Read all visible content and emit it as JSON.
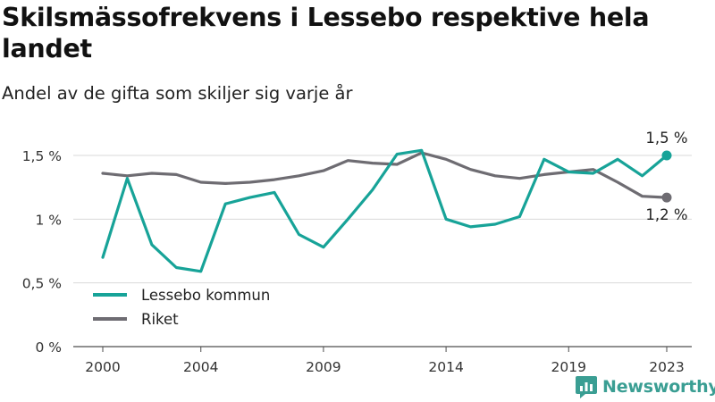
{
  "title": "Skilsmässofrekvens i Lessebo respektive hela landet",
  "subtitle": "Andel av de gifta som skiljer sig varje år",
  "brand": "Newsworthy",
  "chart_data": {
    "type": "line",
    "x": [
      2000,
      2001,
      2002,
      2003,
      2004,
      2005,
      2006,
      2007,
      2008,
      2009,
      2010,
      2011,
      2012,
      2013,
      2014,
      2015,
      2016,
      2017,
      2018,
      2019,
      2020,
      2021,
      2022,
      2023
    ],
    "xticks": [
      2000,
      2004,
      2009,
      2014,
      2019,
      2023
    ],
    "yticks": [
      0,
      0.5,
      1,
      1.5
    ],
    "ytick_labels": [
      "0 %",
      "0,5 %",
      "1 %",
      "1,5 %"
    ],
    "ylim": [
      0,
      1.5
    ],
    "xlim": [
      2000,
      2023
    ],
    "grid": true,
    "legend_position": "bottom-left",
    "series": [
      {
        "name": "Lessebo kommun",
        "color": "#17a398",
        "values": [
          0.7,
          1.32,
          0.8,
          0.62,
          0.59,
          1.12,
          1.17,
          1.21,
          0.88,
          0.78,
          1.0,
          1.23,
          1.51,
          1.54,
          1.0,
          0.94,
          0.96,
          1.02,
          1.47,
          1.37,
          1.36,
          1.47,
          1.34,
          1.5
        ],
        "end_label": "1,5 %"
      },
      {
        "name": "Riket",
        "color": "#6e6c72",
        "values": [
          1.36,
          1.34,
          1.36,
          1.35,
          1.29,
          1.28,
          1.29,
          1.31,
          1.34,
          1.38,
          1.46,
          1.44,
          1.43,
          1.52,
          1.47,
          1.39,
          1.34,
          1.32,
          1.35,
          1.37,
          1.39,
          1.29,
          1.18,
          1.17
        ],
        "end_label": "1,2 %"
      }
    ]
  }
}
